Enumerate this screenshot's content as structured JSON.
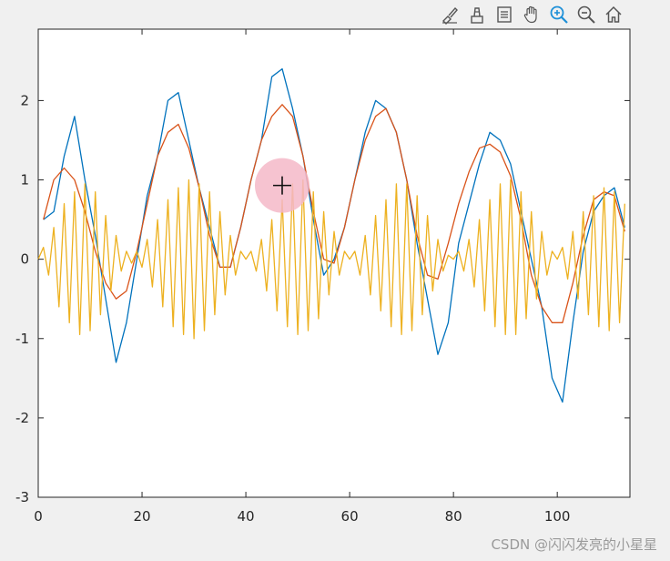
{
  "toolbar": {
    "icons": [
      "edit-brush-icon",
      "data-cursor-icon",
      "legend-icon",
      "pan-hand-icon",
      "zoom-in-icon",
      "zoom-out-icon",
      "home-icon"
    ]
  },
  "watermark": "CSDN @闪闪发亮的小星星",
  "colors": {
    "background": "#f0f0f0",
    "axes_bg": "#ffffff",
    "series1": "#0072bd",
    "series2": "#d95319",
    "series3": "#edb120",
    "cursor_highlight": "#f4b8c8"
  },
  "chart_data": {
    "type": "line",
    "title": "",
    "xlabel": "",
    "ylabel": "",
    "xlim": [
      0,
      114
    ],
    "ylim": [
      -3,
      2.9
    ],
    "xticks": [
      0,
      20,
      40,
      60,
      80,
      100
    ],
    "xtick_labels": [
      "0",
      "20",
      "40",
      "60",
      "80",
      "100"
    ],
    "yticks": [
      -3,
      -2,
      -1,
      0,
      1,
      2
    ],
    "ytick_labels": [
      "-3",
      "-2",
      "-1",
      "0",
      "1",
      "2"
    ],
    "grid": false,
    "legend": "none",
    "data_cursor": {
      "x": 47,
      "y": 0.93
    },
    "series": [
      {
        "color": "#0072bd",
        "x": [
          1,
          3,
          5,
          7,
          9,
          11,
          13,
          15,
          17,
          19,
          21,
          23,
          25,
          27,
          29,
          31,
          33,
          35,
          37,
          39,
          41,
          43,
          45,
          47,
          49,
          51,
          53,
          55,
          57,
          59,
          61,
          63,
          65,
          67,
          69,
          71,
          73,
          75,
          77,
          79,
          81,
          83,
          85,
          87,
          89,
          91,
          93,
          95,
          97,
          99,
          101,
          103,
          105,
          107,
          109,
          111,
          113
        ],
        "y": [
          0.5,
          0.6,
          1.3,
          1.8,
          1.0,
          0.3,
          -0.5,
          -1.3,
          -0.8,
          0.0,
          0.8,
          1.3,
          2.0,
          2.1,
          1.5,
          0.9,
          0.4,
          -0.1,
          -0.1,
          0.4,
          1.0,
          1.5,
          2.3,
          2.4,
          1.9,
          1.3,
          0.5,
          -0.2,
          0.0,
          0.4,
          1.0,
          1.6,
          2.0,
          1.9,
          1.6,
          1.0,
          0.2,
          -0.5,
          -1.2,
          -0.8,
          0.2,
          0.7,
          1.2,
          1.6,
          1.5,
          1.2,
          0.6,
          0.0,
          -0.6,
          -1.5,
          -1.8,
          -0.8,
          0.1,
          0.6,
          0.8,
          0.9,
          0.4
        ]
      },
      {
        "color": "#d95319",
        "x": [
          1,
          3,
          5,
          7,
          9,
          11,
          13,
          15,
          17,
          19,
          21,
          23,
          25,
          27,
          29,
          31,
          33,
          35,
          37,
          39,
          41,
          43,
          45,
          47,
          49,
          51,
          53,
          55,
          57,
          59,
          61,
          63,
          65,
          67,
          69,
          71,
          73,
          75,
          77,
          79,
          81,
          83,
          85,
          87,
          89,
          91,
          93,
          95,
          97,
          99,
          101,
          103,
          105,
          107,
          109,
          111,
          113
        ],
        "y": [
          0.5,
          1.0,
          1.15,
          1.0,
          0.6,
          0.1,
          -0.3,
          -0.5,
          -0.4,
          0.1,
          0.7,
          1.3,
          1.6,
          1.7,
          1.4,
          0.9,
          0.3,
          -0.1,
          -0.1,
          0.4,
          1.0,
          1.5,
          1.8,
          1.95,
          1.8,
          1.3,
          0.6,
          0.0,
          -0.05,
          0.4,
          1.0,
          1.5,
          1.8,
          1.9,
          1.6,
          1.0,
          0.3,
          -0.2,
          -0.25,
          0.2,
          0.7,
          1.1,
          1.4,
          1.45,
          1.35,
          1.05,
          0.5,
          -0.2,
          -0.6,
          -0.8,
          -0.8,
          -0.3,
          0.3,
          0.75,
          0.85,
          0.8,
          0.35
        ]
      },
      {
        "color": "#edb120",
        "x": [
          0,
          1,
          2,
          3,
          4,
          5,
          6,
          7,
          8,
          9,
          10,
          11,
          12,
          13,
          14,
          15,
          16,
          17,
          18,
          19,
          20,
          21,
          22,
          23,
          24,
          25,
          26,
          27,
          28,
          29,
          30,
          31,
          32,
          33,
          34,
          35,
          36,
          37,
          38,
          39,
          40,
          41,
          42,
          43,
          44,
          45,
          46,
          47,
          48,
          49,
          50,
          51,
          52,
          53,
          54,
          55,
          56,
          57,
          58,
          59,
          60,
          61,
          62,
          63,
          64,
          65,
          66,
          67,
          68,
          69,
          70,
          71,
          72,
          73,
          74,
          75,
          76,
          77,
          78,
          79,
          80,
          81,
          82,
          83,
          84,
          85,
          86,
          87,
          88,
          89,
          90,
          91,
          92,
          93,
          94,
          95,
          96,
          97,
          98,
          99,
          100,
          101,
          102,
          103,
          104,
          105,
          106,
          107,
          108,
          109,
          110,
          111,
          112,
          113
        ],
        "y": [
          0.0,
          0.15,
          -0.2,
          0.4,
          -0.6,
          0.7,
          -0.8,
          0.85,
          -0.95,
          0.95,
          -0.9,
          0.85,
          -0.7,
          0.55,
          -0.4,
          0.3,
          -0.15,
          0.1,
          -0.05,
          0.1,
          -0.1,
          0.25,
          -0.35,
          0.5,
          -0.6,
          0.75,
          -0.85,
          0.9,
          -0.95,
          1.0,
          -1.0,
          0.95,
          -0.9,
          0.85,
          -0.7,
          0.6,
          -0.45,
          0.3,
          -0.2,
          0.1,
          0.0,
          0.1,
          -0.15,
          0.25,
          -0.4,
          0.5,
          -0.65,
          0.75,
          -0.85,
          0.95,
          -0.95,
          1.0,
          -0.9,
          0.85,
          -0.75,
          0.6,
          -0.45,
          0.35,
          -0.2,
          0.1,
          0.0,
          0.1,
          -0.2,
          0.3,
          -0.45,
          0.55,
          -0.65,
          0.75,
          -0.85,
          0.95,
          -0.95,
          0.95,
          -0.9,
          0.8,
          -0.7,
          0.55,
          -0.4,
          0.25,
          -0.15,
          0.05,
          0.0,
          0.1,
          -0.15,
          0.25,
          -0.35,
          0.5,
          -0.65,
          0.75,
          -0.85,
          0.95,
          -0.95,
          1.0,
          -0.95,
          0.85,
          -0.75,
          0.6,
          -0.5,
          0.35,
          -0.2,
          0.1,
          0.0,
          0.15,
          -0.25,
          0.35,
          -0.5,
          0.6,
          -0.7,
          0.8,
          -0.85,
          0.9,
          -0.9,
          0.85,
          -0.8,
          0.7
        ]
      }
    ]
  }
}
